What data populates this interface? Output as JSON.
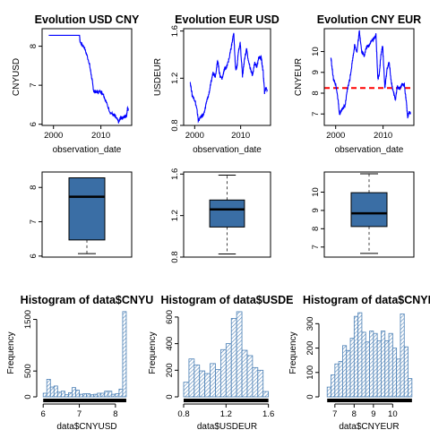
{
  "colors": {
    "line": "#0000ff",
    "box_fill": "#3a6ea5",
    "hist_hatch": "#4a7fb5",
    "mean_line": "#ff0000",
    "rug": "#000000"
  },
  "chart_data": [
    {
      "id": "ts_cny",
      "type": "line",
      "title": "Evolution USD CNY",
      "xlabel": "observation_date",
      "ylabel": "CNYUSD",
      "xlim": [
        1997.6,
        2016.5
      ],
      "ylim": [
        5.97,
        8.45
      ],
      "xticks": [
        2000,
        2010
      ],
      "yticks": [
        6.0,
        7.0,
        8.0
      ],
      "series": [
        {
          "x": [
            1999.0,
            2005.5,
            2005.6,
            2006.5,
            2007.5,
            2008.0,
            2008.5,
            2009.0,
            2010.0,
            2010.5,
            2011.0,
            2012.0,
            2013.0,
            2013.8,
            2014.2,
            2014.6,
            2015.0,
            2015.4,
            2015.6,
            2015.8
          ],
          "y": [
            8.28,
            8.28,
            8.11,
            7.97,
            7.6,
            7.25,
            6.84,
            6.83,
            6.83,
            6.78,
            6.6,
            6.3,
            6.2,
            6.05,
            6.18,
            6.15,
            6.21,
            6.21,
            6.39,
            6.37
          ]
        }
      ]
    },
    {
      "id": "ts_eur",
      "type": "line",
      "title": "Evolution EUR USD",
      "xlabel": "observation_date",
      "ylabel": "USDEUR",
      "xlim": [
        1997.6,
        2016.5
      ],
      "ylim": [
        0.8,
        1.62
      ],
      "xticks": [
        2000,
        2010
      ],
      "yticks": [
        0.8,
        1.2,
        1.6
      ],
      "series": [
        {
          "x": [
            1999.0,
            1999.5,
            2000.0,
            2000.5,
            2000.8,
            2001.5,
            2002.0,
            2002.5,
            2003.0,
            2003.5,
            2004.0,
            2004.5,
            2005.0,
            2005.5,
            2006.0,
            2006.5,
            2007.0,
            2007.5,
            2008.0,
            2008.5,
            2008.9,
            2009.2,
            2009.5,
            2009.9,
            2010.4,
            2010.8,
            2011.3,
            2011.7,
            2012.2,
            2012.6,
            2013.0,
            2013.5,
            2014.0,
            2014.5,
            2014.9,
            2015.2,
            2015.5,
            2015.8
          ],
          "y": [
            1.17,
            1.05,
            1.02,
            0.93,
            0.84,
            0.88,
            0.89,
            0.99,
            1.05,
            1.15,
            1.25,
            1.22,
            1.35,
            1.22,
            1.2,
            1.28,
            1.3,
            1.37,
            1.47,
            1.58,
            1.27,
            1.3,
            1.42,
            1.5,
            1.22,
            1.35,
            1.45,
            1.34,
            1.27,
            1.22,
            1.33,
            1.3,
            1.38,
            1.37,
            1.25,
            1.08,
            1.12,
            1.1
          ]
        }
      ]
    },
    {
      "id": "ts_cnyeur",
      "type": "line",
      "title": "Evolution CNY EUR",
      "xlabel": "observation_date",
      "ylabel": "CNYEUR",
      "xlim": [
        1997.6,
        2016.5
      ],
      "ylim": [
        6.45,
        11.1
      ],
      "xticks": [
        2000,
        2010
      ],
      "yticks": [
        7,
        8,
        9,
        10
      ],
      "mean": 8.25,
      "series": [
        {
          "x": [
            1999.0,
            1999.5,
            2000.0,
            2000.5,
            2000.8,
            2001.5,
            2002.0,
            2002.5,
            2003.0,
            2003.5,
            2004.0,
            2004.5,
            2005.0,
            2005.5,
            2006.0,
            2006.5,
            2007.0,
            2007.5,
            2008.0,
            2008.5,
            2008.9,
            2009.2,
            2009.5,
            2009.9,
            2010.4,
            2010.8,
            2011.3,
            2011.7,
            2012.2,
            2012.6,
            2013.0,
            2013.5,
            2014.0,
            2014.5,
            2014.9,
            2015.2,
            2015.5,
            2015.8
          ],
          "y": [
            9.7,
            8.7,
            8.4,
            7.7,
            7.0,
            7.3,
            7.4,
            8.2,
            8.7,
            9.5,
            10.3,
            10.0,
            11.0,
            10.0,
            9.8,
            10.2,
            10.3,
            10.5,
            10.6,
            10.8,
            8.7,
            8.9,
            9.7,
            10.3,
            8.2,
            9.1,
            9.5,
            8.6,
            8.0,
            7.7,
            8.3,
            8.2,
            8.4,
            8.4,
            7.6,
            6.8,
            7.1,
            7.0
          ]
        }
      ]
    },
    {
      "id": "box_cny",
      "type": "box",
      "ylim": [
        5.97,
        8.45
      ],
      "yticks": [
        6.0,
        7.0,
        8.0
      ],
      "min": 6.07,
      "q1": 6.47,
      "median": 7.73,
      "q3": 8.28,
      "max": 8.28
    },
    {
      "id": "box_eur",
      "type": "box",
      "ylim": [
        0.8,
        1.62
      ],
      "yticks": [
        0.8,
        1.2,
        1.6
      ],
      "min": 0.83,
      "q1": 1.09,
      "median": 1.26,
      "q3": 1.35,
      "max": 1.59
    },
    {
      "id": "box_cnyeur",
      "type": "box",
      "ylim": [
        6.45,
        11.1
      ],
      "yticks": [
        7,
        8,
        9,
        10
      ],
      "min": 6.65,
      "q1": 8.12,
      "median": 8.84,
      "q3": 9.97,
      "max": 11.0
    },
    {
      "id": "hist_cny",
      "type": "histogram",
      "title": "Histogram of data$CNYU",
      "xlabel": "data$CNYUSD",
      "ylabel": "Frequency",
      "xlim": [
        5.97,
        8.45
      ],
      "ylim": [
        0,
        1700
      ],
      "xticks": [
        6.0,
        7.0,
        8.0
      ],
      "yticks": [
        0,
        500,
        1500
      ],
      "bins": [
        6.0,
        6.1,
        6.2,
        6.3,
        6.4,
        6.5,
        6.6,
        6.7,
        6.8,
        6.9,
        7.0,
        7.1,
        7.2,
        7.3,
        7.4,
        7.5,
        7.6,
        7.7,
        7.8,
        7.9,
        8.0,
        8.1,
        8.2,
        8.3
      ],
      "counts": [
        70,
        340,
        190,
        210,
        90,
        110,
        40,
        80,
        180,
        130,
        50,
        60,
        60,
        40,
        50,
        70,
        70,
        110,
        110,
        50,
        60,
        150,
        1650
      ]
    },
    {
      "id": "hist_eur",
      "type": "histogram",
      "title": "Histogram of data$USDE",
      "xlabel": "data$USDEUR",
      "ylabel": "Frequency",
      "xlim": [
        0.8,
        1.62
      ],
      "ylim": [
        0,
        660
      ],
      "xticks": [
        0.8,
        1.2,
        1.6
      ],
      "yticks": [
        0,
        200,
        400,
        600
      ],
      "bins": [
        0.8,
        0.85,
        0.9,
        0.95,
        1.0,
        1.05,
        1.1,
        1.15,
        1.2,
        1.25,
        1.3,
        1.35,
        1.4,
        1.45,
        1.5,
        1.55,
        1.6
      ],
      "counts": [
        110,
        285,
        240,
        195,
        175,
        250,
        205,
        355,
        400,
        590,
        640,
        350,
        310,
        220,
        200,
        40
      ]
    },
    {
      "id": "hist_cnyeur",
      "type": "histogram",
      "title": "Histogram of data$CNYE",
      "xlabel": "data$CNYEUR",
      "ylabel": "Frequency",
      "xlim": [
        6.45,
        11.1
      ],
      "ylim": [
        0,
        360
      ],
      "xticks": [
        7,
        8,
        9,
        10
      ],
      "yticks": [
        0,
        100,
        200,
        300
      ],
      "bins": [
        6.6,
        6.8,
        7.0,
        7.2,
        7.4,
        7.6,
        7.8,
        8.0,
        8.2,
        8.4,
        8.6,
        8.8,
        9.0,
        9.2,
        9.4,
        9.6,
        9.8,
        10.0,
        10.2,
        10.4,
        10.6,
        10.8,
        11.0
      ],
      "counts": [
        40,
        90,
        135,
        145,
        210,
        190,
        240,
        330,
        345,
        265,
        225,
        270,
        260,
        230,
        270,
        230,
        260,
        200,
        155,
        340,
        205,
        75
      ]
    }
  ]
}
